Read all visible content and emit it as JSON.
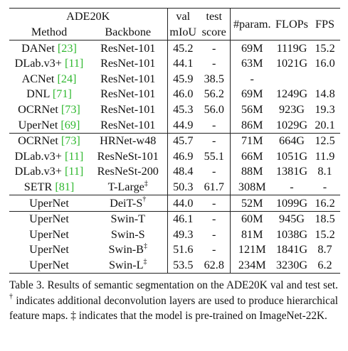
{
  "table": {
    "header": {
      "dataset": "ADE20K",
      "method": "Method",
      "backbone": "Backbone",
      "val_top": "val",
      "val_bottom": "mIoU",
      "test_top": "test",
      "test_bottom": "score",
      "params": "#param.",
      "flops": "FLOPs",
      "fps": "FPS"
    },
    "groups": [
      [
        {
          "method": "DANet",
          "ref": "[23]",
          "backbone": "ResNet-101",
          "backbone_sup": "",
          "val": "45.2",
          "test": "-",
          "params": "69M",
          "flops": "1119G",
          "fps": "15.2"
        },
        {
          "method": "DLab.v3+",
          "ref": "[11]",
          "backbone": "ResNet-101",
          "backbone_sup": "",
          "val": "44.1",
          "test": "-",
          "params": "63M",
          "flops": "1021G",
          "fps": "16.0"
        },
        {
          "method": "ACNet",
          "ref": "[24]",
          "backbone": "ResNet-101",
          "backbone_sup": "",
          "val": "45.9",
          "test": "38.5",
          "params": "-",
          "flops": "",
          "fps": ""
        },
        {
          "method": "DNL",
          "ref": "[71]",
          "backbone": "ResNet-101",
          "backbone_sup": "",
          "val": "46.0",
          "test": "56.2",
          "params": "69M",
          "flops": "1249G",
          "fps": "14.8"
        },
        {
          "method": "OCRNet",
          "ref": "[73]",
          "backbone": "ResNet-101",
          "backbone_sup": "",
          "val": "45.3",
          "test": "56.0",
          "params": "56M",
          "flops": "923G",
          "fps": "19.3"
        },
        {
          "method": "UperNet",
          "ref": "[69]",
          "backbone": "ResNet-101",
          "backbone_sup": "",
          "val": "44.9",
          "test": "-",
          "params": "86M",
          "flops": "1029G",
          "fps": "20.1"
        }
      ],
      [
        {
          "method": "OCRNet",
          "ref": "[73]",
          "backbone": "HRNet-w48",
          "backbone_sup": "",
          "val": "45.7",
          "test": "-",
          "params": "71M",
          "flops": "664G",
          "fps": "12.5"
        },
        {
          "method": "DLab.v3+",
          "ref": "[11]",
          "backbone": "ResNeSt-101",
          "backbone_sup": "",
          "val": "46.9",
          "test": "55.1",
          "params": "66M",
          "flops": "1051G",
          "fps": "11.9"
        },
        {
          "method": "DLab.v3+",
          "ref": "[11]",
          "backbone": "ResNeSt-200",
          "backbone_sup": "",
          "val": "48.4",
          "test": "-",
          "params": "88M",
          "flops": "1381G",
          "fps": "8.1"
        },
        {
          "method": "SETR",
          "ref": "[81]",
          "backbone": "T-Large",
          "backbone_sup": "‡",
          "val": "50.3",
          "test": "61.7",
          "params": "308M",
          "flops": "-",
          "fps": "-"
        }
      ],
      [
        {
          "method": "UperNet",
          "ref": "",
          "backbone": "DeiT-S",
          "backbone_sup": "†",
          "val": "44.0",
          "test": "-",
          "params": "52M",
          "flops": "1099G",
          "fps": "16.2"
        }
      ],
      [
        {
          "method": "UperNet",
          "ref": "",
          "backbone": "Swin-T",
          "backbone_sup": "",
          "val": "46.1",
          "test": "-",
          "params": "60M",
          "flops": "945G",
          "fps": "18.5"
        },
        {
          "method": "UperNet",
          "ref": "",
          "backbone": "Swin-S",
          "backbone_sup": "",
          "val": "49.3",
          "test": "-",
          "params": "81M",
          "flops": "1038G",
          "fps": "15.2"
        },
        {
          "method": "UperNet",
          "ref": "",
          "backbone": "Swin-B",
          "backbone_sup": "‡",
          "val": "51.6",
          "test": "-",
          "params": "121M",
          "flops": "1841G",
          "fps": "8.7"
        },
        {
          "method": "UperNet",
          "ref": "",
          "backbone": "Swin-L",
          "backbone_sup": "‡",
          "val": "53.5",
          "test": "62.8",
          "params": "234M",
          "flops": "3230G",
          "fps": "6.2",
          "bold_val": true,
          "bold_test": true
        }
      ]
    ]
  },
  "caption": {
    "label": "Table 3.",
    "text_1": "Results of semantic segmentation on the ADE20K val and test set.",
    "dagger": "†",
    "text_2": "indicates additional deconvolution layers are used to produce hierarchical feature maps.",
    "ddagger": "‡",
    "text_3": "indicates that the model is pre-trained on ImageNet-22K."
  },
  "colors": {
    "ref_link": "#2fb82f",
    "text": "#111111",
    "rule": "#222222"
  }
}
